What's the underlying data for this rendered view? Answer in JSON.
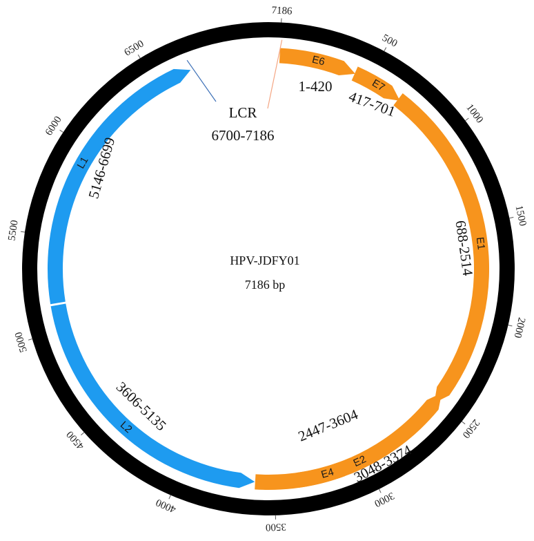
{
  "plasmid": {
    "name": "HPV-JDFY01",
    "size_label": "7186 bp",
    "total_bp": 7186
  },
  "ticks": [
    {
      "bp": 0,
      "label": "7186"
    },
    {
      "bp": 500,
      "label": "500"
    },
    {
      "bp": 1000,
      "label": "1000"
    },
    {
      "bp": 1500,
      "label": "1500"
    },
    {
      "bp": 2000,
      "label": "2000"
    },
    {
      "bp": 2500,
      "label": "2500"
    },
    {
      "bp": 3000,
      "label": "3000"
    },
    {
      "bp": 3500,
      "label": "3500"
    },
    {
      "bp": 4000,
      "label": "4000"
    },
    {
      "bp": 4500,
      "label": "4500"
    },
    {
      "bp": 5000,
      "label": "5000"
    },
    {
      "bp": 5500,
      "label": "5500"
    },
    {
      "bp": 6000,
      "label": "6000"
    },
    {
      "bp": 6500,
      "label": "6500"
    }
  ],
  "genes": [
    {
      "id": "e6",
      "name": "E6",
      "start": 1,
      "end": 420,
      "strand": "forward",
      "color": "#F7941D",
      "range_label": "1-420"
    },
    {
      "id": "e7",
      "name": "E7",
      "start": 417,
      "end": 701,
      "strand": "forward",
      "color": "#F7941D",
      "range_label": "417-701"
    },
    {
      "id": "e1",
      "name": "E1",
      "start": 688,
      "end": 2514,
      "strand": "forward",
      "color": "#F7941D",
      "range_label": "688-2514"
    },
    {
      "id": "e2",
      "name": "E2",
      "start": 2447,
      "end": 3604,
      "strand": "reverse",
      "color": "#F7941D",
      "range_label": "2447-3604"
    },
    {
      "id": "e4",
      "name": "E4",
      "start": 3048,
      "end": 3374,
      "strand": "reverse",
      "color": "#F7941D",
      "range_label": "3048-3374"
    },
    {
      "id": "l2",
      "name": "L2",
      "start": 3606,
      "end": 5135,
      "strand": "reverse",
      "color": "#1E9BF0",
      "range_label": "3606-5135"
    },
    {
      "id": "l1",
      "name": "L1",
      "start": 5146,
      "end": 6699,
      "strand": "forward",
      "color": "#1E9BF0",
      "range_label": "5146-6699"
    }
  ],
  "lcr": {
    "name": "LCR",
    "range_label": "6700-7186",
    "start": 6700,
    "end": 7186,
    "start_line_color": "#3B6FB6",
    "end_line_color": "#F4A582"
  },
  "colors": {
    "backbone": "#000000",
    "early_genes": "#F7941D",
    "late_genes": "#1E9BF0"
  }
}
